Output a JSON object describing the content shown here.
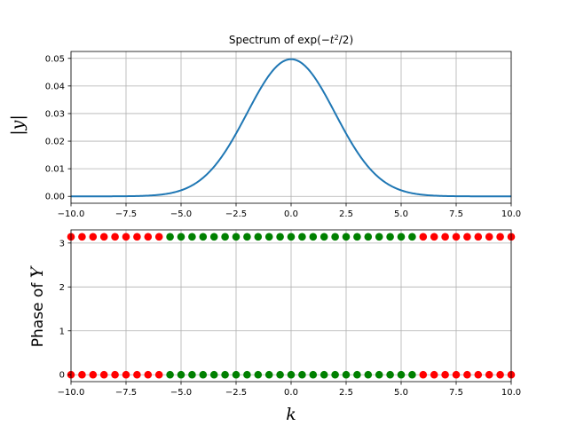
{
  "chart_data": [
    {
      "type": "line",
      "title_prefix": "Spectrum of exp(−",
      "title_var": "t",
      "title_exp": "2",
      "title_suffix": "/2)",
      "ylabel": "|y|",
      "xlim": [
        -10,
        10
      ],
      "ylim": [
        -0.0025,
        0.0525
      ],
      "xticks": [
        -10,
        -7.5,
        -5,
        -2.5,
        0,
        2.5,
        5,
        7.5,
        10
      ],
      "xtick_labels": [
        "−10.0",
        "−7.5",
        "−5.0",
        "−2.5",
        "0.0",
        "2.5",
        "5.0",
        "7.5",
        "10.0"
      ],
      "yticks": [
        0,
        0.01,
        0.02,
        0.03,
        0.04,
        0.05
      ],
      "ytick_labels": [
        "0.00",
        "0.01",
        "0.02",
        "0.03",
        "0.04",
        "0.05"
      ],
      "grid": true,
      "series": [
        {
          "color": "#1f77b4",
          "function": "gaussian",
          "amplitude": 0.0497,
          "sigma": 2.0,
          "x_range": [
            -10,
            10
          ]
        }
      ]
    },
    {
      "type": "scatter",
      "ylabel_prefix": "Phase of ",
      "ylabel_var": "Y",
      "xlabel": "k",
      "xlim": [
        -10,
        10
      ],
      "ylim": [
        -0.157,
        3.3
      ],
      "xticks": [
        -10,
        -7.5,
        -5,
        -2.5,
        0,
        2.5,
        5,
        7.5,
        10
      ],
      "xtick_labels": [
        "−10.0",
        "−7.5",
        "−5.0",
        "−2.5",
        "0.0",
        "2.5",
        "5.0",
        "7.5",
        "10.0"
      ],
      "yticks": [
        0,
        1,
        2,
        3
      ],
      "ytick_labels": [
        "0",
        "1",
        "2",
        "3"
      ],
      "grid": true,
      "series": [
        {
          "color": "#ff0000",
          "y": 3.1416,
          "x": [
            -10,
            -9.5,
            -9,
            -8.5,
            -8,
            -7.5,
            -7,
            -6.5,
            -6,
            6,
            6.5,
            7,
            7.5,
            8,
            8.5,
            9,
            9.5,
            10
          ]
        },
        {
          "color": "#008000",
          "y": 3.1416,
          "x": [
            -5.5,
            -5,
            -4.5,
            -4,
            -3.5,
            -3,
            -2.5,
            -2,
            -1.5,
            -1,
            -0.5,
            0,
            0.5,
            1,
            1.5,
            2,
            2.5,
            3,
            3.5,
            4,
            4.5,
            5,
            5.5
          ]
        },
        {
          "color": "#ff0000",
          "y": 0,
          "x": [
            -10,
            -9.5,
            -9,
            -8.5,
            -8,
            -7.5,
            -7,
            -6.5,
            -6,
            6,
            6.5,
            7,
            7.5,
            8,
            8.5,
            9,
            9.5,
            10
          ]
        },
        {
          "color": "#008000",
          "y": 0,
          "x": [
            -5.5,
            -5,
            -4.5,
            -4,
            -3.5,
            -3,
            -2.5,
            -2,
            -1.5,
            -1,
            -0.5,
            0,
            0.5,
            1,
            1.5,
            2,
            2.5,
            3,
            3.5,
            4,
            4.5,
            5,
            5.5
          ]
        }
      ]
    }
  ]
}
